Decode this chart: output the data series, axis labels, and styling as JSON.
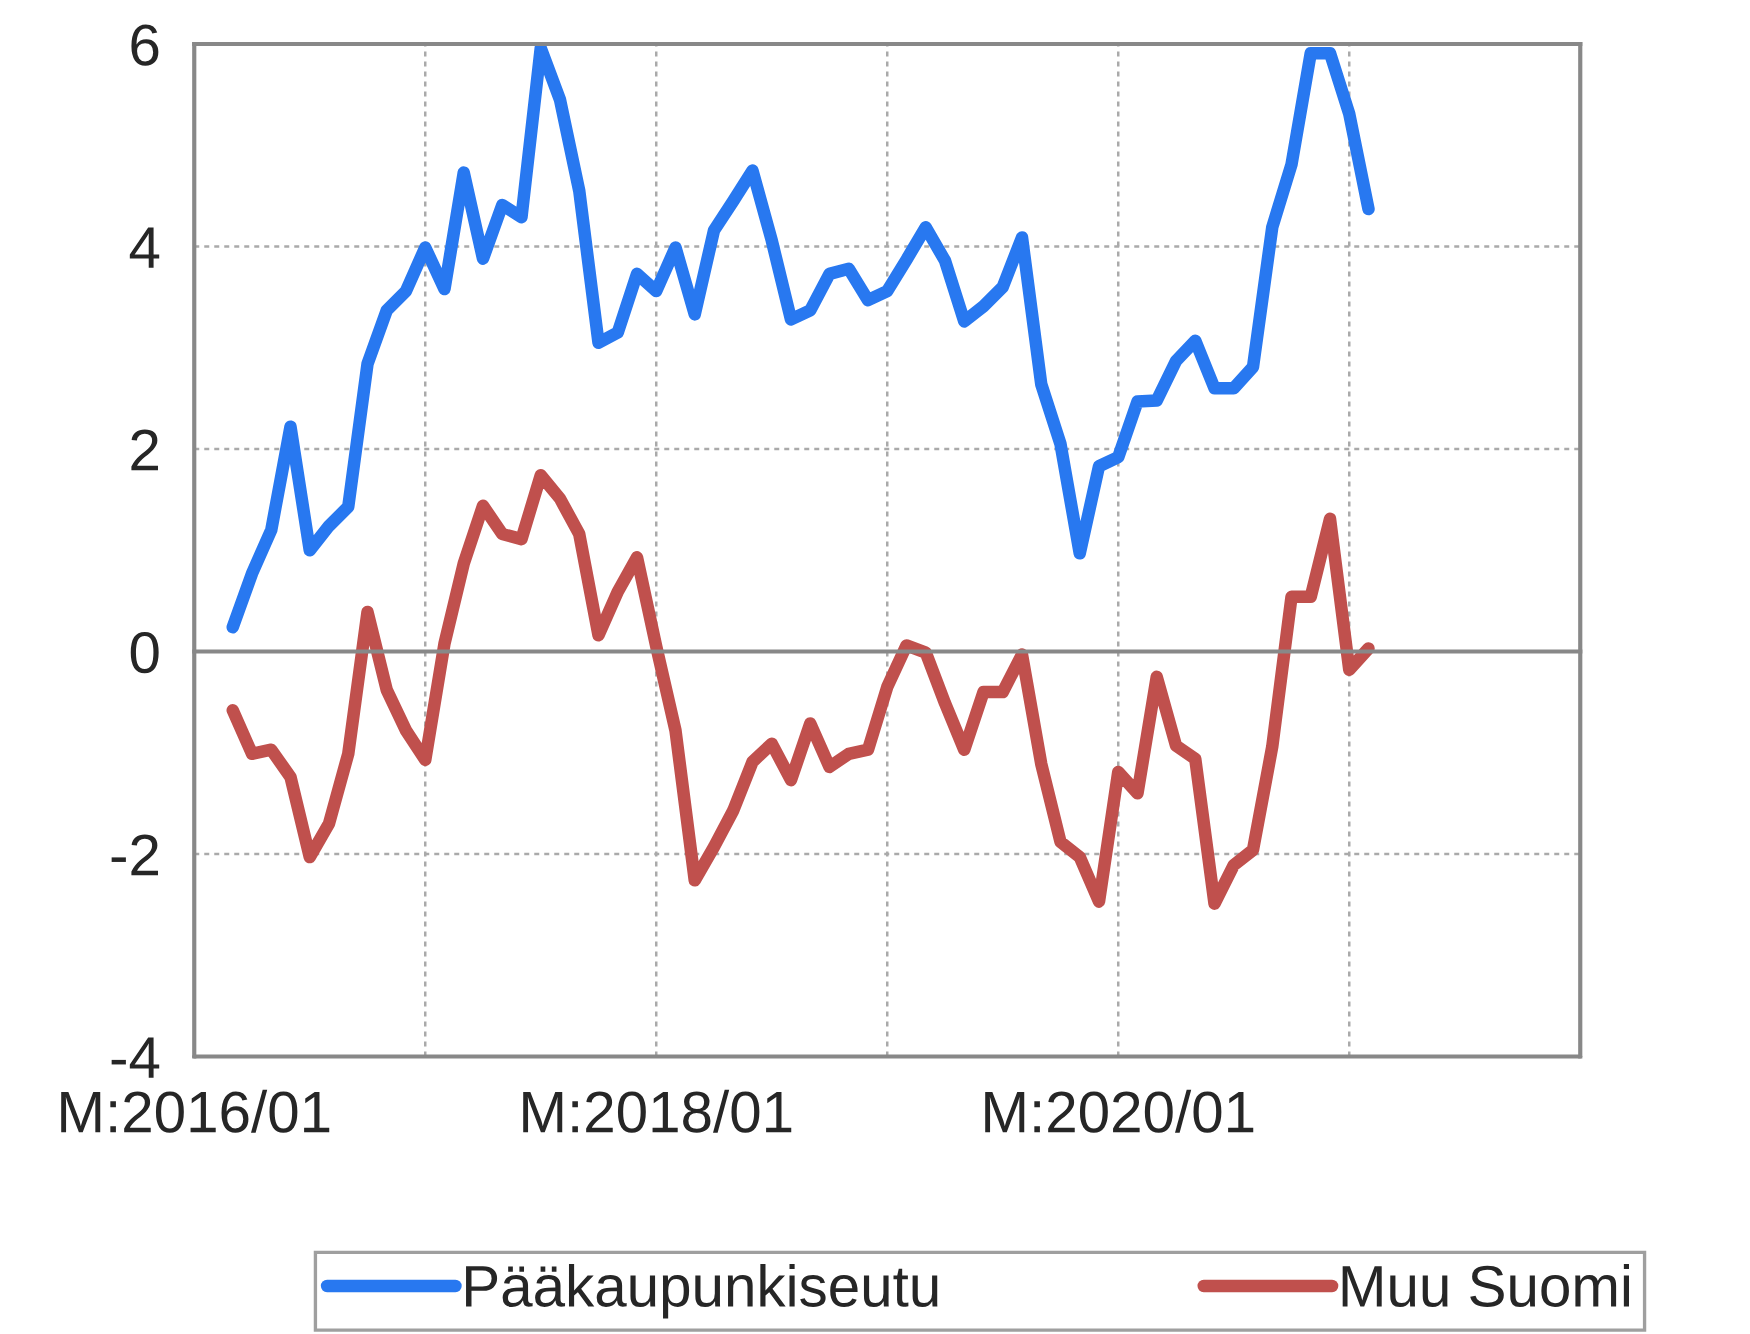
{
  "chart_data": {
    "type": "line",
    "categories": [
      "M:2016/01",
      null,
      null,
      null,
      null,
      null,
      null,
      null,
      null,
      null,
      null,
      null,
      null,
      null,
      null,
      null,
      null,
      null,
      null,
      null,
      null,
      null,
      null,
      null,
      "M:2018/01",
      null,
      null,
      null,
      null,
      null,
      null,
      null,
      null,
      null,
      null,
      null,
      null,
      null,
      null,
      null,
      null,
      null,
      null,
      null,
      null,
      null,
      null,
      null,
      "M:2020/01",
      null,
      null,
      null,
      null,
      null,
      null,
      null,
      null,
      null,
      null,
      null,
      null,
      null,
      null,
      null,
      null,
      null,
      null,
      null,
      null,
      null,
      null,
      null,
      null
    ],
    "series": [
      {
        "name": "Pääkaupunkiseutu",
        "color": "#2878f0",
        "values": [
          null,
          null,
          0.24,
          0.77,
          1.2,
          2.22,
          1.0,
          1.24,
          1.43,
          2.84,
          3.37,
          3.56,
          3.99,
          3.58,
          4.73,
          3.88,
          4.41,
          4.29,
          5.96,
          5.45,
          4.55,
          3.05,
          3.15,
          3.73,
          3.56,
          3.99,
          3.33,
          4.16,
          4.45,
          4.75,
          4.06,
          3.28,
          3.37,
          3.73,
          3.78,
          3.47,
          3.56,
          3.87,
          4.19,
          3.86,
          3.26,
          3.41,
          3.6,
          4.09,
          2.64,
          2.05,
          0.97,
          1.83,
          1.92,
          2.47,
          2.48,
          2.87,
          3.07,
          2.6,
          2.6,
          2.81,
          4.19,
          4.81,
          5.91,
          5.91,
          5.31,
          4.37,
          null,
          null,
          null,
          null,
          null,
          null,
          null,
          null,
          null,
          null,
          null
        ]
      },
      {
        "name": "Muu Suomi",
        "color": "#c0504d",
        "values": [
          null,
          null,
          -0.58,
          -1.01,
          -0.97,
          -1.24,
          -2.03,
          -1.7,
          -1.01,
          0.39,
          -0.38,
          -0.78,
          -1.07,
          0.08,
          0.87,
          1.44,
          1.16,
          1.11,
          1.74,
          1.51,
          1.16,
          0.16,
          0.59,
          0.93,
          0.05,
          -0.78,
          -2.26,
          -1.93,
          -1.57,
          -1.09,
          -0.91,
          -1.27,
          -0.71,
          -1.14,
          -1.01,
          -0.97,
          -0.35,
          0.06,
          -0.01,
          -0.51,
          -0.97,
          -0.4,
          -0.4,
          -0.03,
          -1.11,
          -1.88,
          -2.03,
          -2.47,
          -1.19,
          -1.4,
          -0.25,
          -0.93,
          -1.06,
          -2.49,
          -2.11,
          -1.96,
          -0.94,
          0.54,
          0.54,
          1.31,
          -0.18,
          0.03,
          null,
          null,
          null,
          null,
          null,
          null,
          null,
          null,
          null,
          null,
          null
        ]
      }
    ],
    "ylim": [
      -4,
      6
    ],
    "yticks": [
      -4,
      -2,
      0,
      2,
      4,
      6
    ],
    "grid": true,
    "legend": "bottom",
    "marker": "none",
    "line_style": "solid"
  }
}
